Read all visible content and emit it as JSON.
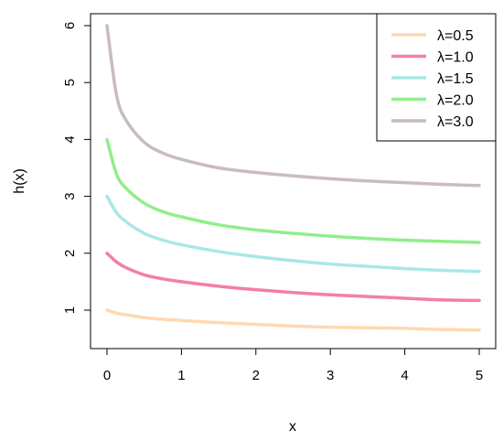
{
  "chart_data": {
    "type": "line",
    "xlabel": "x",
    "ylabel": "h(x)",
    "xlim": [
      0,
      5
    ],
    "ylim": [
      0.6,
      6.2
    ],
    "x_ticks": [
      "0",
      "1",
      "2",
      "3",
      "4",
      "5"
    ],
    "y_ticks": [
      "1",
      "2",
      "3",
      "4",
      "5",
      "6"
    ],
    "grid": false,
    "legend_position": "top-right",
    "x": [
      0,
      0.125,
      0.25,
      0.5,
      0.75,
      1,
      1.5,
      2,
      2.5,
      3,
      3.5,
      4,
      4.5,
      5
    ],
    "series": [
      {
        "name": "λ=0.5",
        "color": "#FFD8B1",
        "values": [
          1.0,
          0.95,
          0.92,
          0.87,
          0.84,
          0.82,
          0.78,
          0.75,
          0.72,
          0.7,
          0.69,
          0.68,
          0.66,
          0.65
        ]
      },
      {
        "name": "λ=1.0",
        "color": "#F47FA4",
        "values": [
          2.0,
          1.85,
          1.75,
          1.62,
          1.55,
          1.5,
          1.42,
          1.36,
          1.31,
          1.27,
          1.24,
          1.21,
          1.18,
          1.17
        ]
      },
      {
        "name": "λ=1.5",
        "color": "#A8E8E6",
        "values": [
          3.0,
          2.72,
          2.56,
          2.35,
          2.23,
          2.15,
          2.03,
          1.94,
          1.87,
          1.81,
          1.77,
          1.73,
          1.7,
          1.68
        ]
      },
      {
        "name": "λ=2.0",
        "color": "#90EE8A",
        "values": [
          4.0,
          3.4,
          3.15,
          2.88,
          2.73,
          2.64,
          2.5,
          2.41,
          2.35,
          2.3,
          2.26,
          2.23,
          2.21,
          2.19
        ]
      },
      {
        "name": "λ=3.0",
        "color": "#C9BCC0",
        "values": [
          6.0,
          4.8,
          4.35,
          3.95,
          3.76,
          3.65,
          3.5,
          3.42,
          3.36,
          3.31,
          3.27,
          3.24,
          3.21,
          3.19
        ]
      }
    ]
  }
}
